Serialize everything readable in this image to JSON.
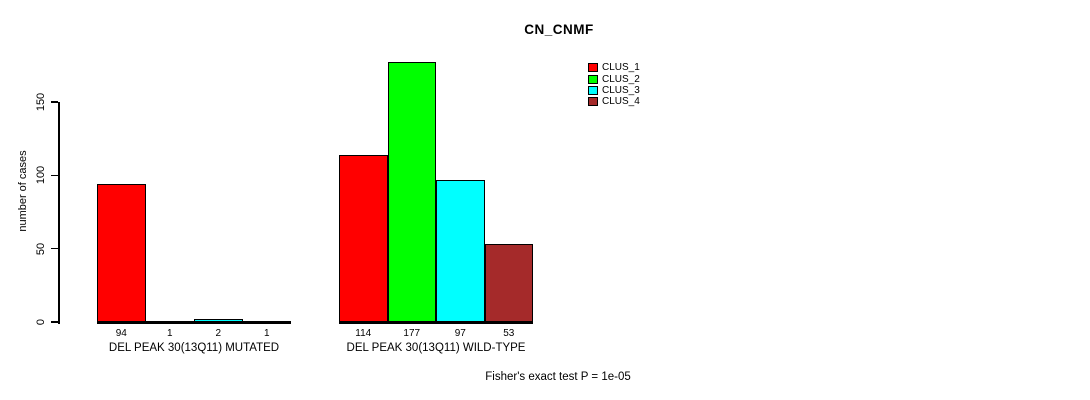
{
  "chart_data": {
    "type": "bar",
    "title": "CN_CNMF",
    "xlabel": "",
    "ylabel": "number of cases",
    "annotation": "Fisher's exact test P = 1e-05",
    "categories": [
      "DEL PEAK 30(13Q11) MUTATED",
      "DEL PEAK 30(13Q11) WILD-TYPE"
    ],
    "series": [
      {
        "name": "CLUS_1",
        "color": "#ff0000",
        "values": [
          94,
          114
        ]
      },
      {
        "name": "CLUS_2",
        "color": "#00ff00",
        "values": [
          1,
          177
        ]
      },
      {
        "name": "CLUS_3",
        "color": "#00ffff",
        "values": [
          2,
          97
        ]
      },
      {
        "name": "CLUS_4",
        "color": "#a52a2a",
        "values": [
          1,
          53
        ]
      }
    ],
    "bar_value_labels": [
      [
        94,
        1,
        2,
        1
      ],
      [
        114,
        177,
        97,
        53
      ]
    ],
    "yticks": [
      0,
      50,
      100,
      150
    ],
    "ylim": [
      0,
      177
    ],
    "grid": false,
    "legend_position": "top-right",
    "background_color": "#ffffff",
    "text_color": "#000000"
  }
}
